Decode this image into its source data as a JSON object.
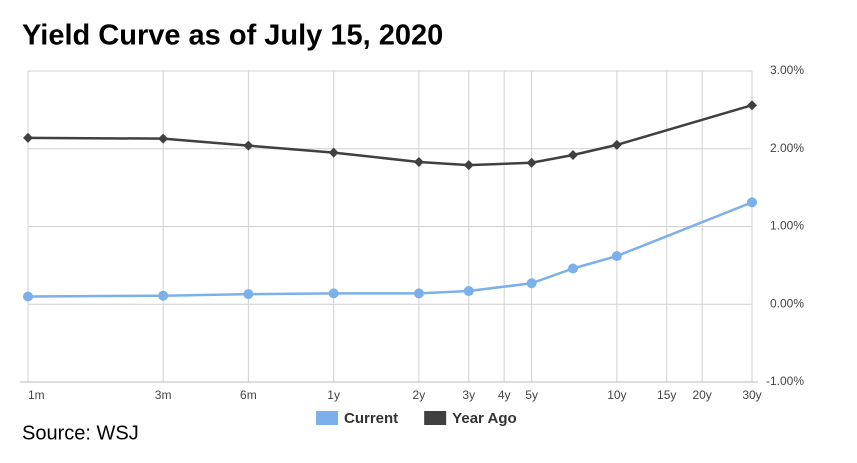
{
  "chart_data": {
    "type": "line",
    "title": "Yield Curve as of July 15, 2020",
    "source": "Source: WSJ",
    "xscale": "log",
    "xlim": [
      1,
      360
    ],
    "xticks": [
      {
        "value": 1,
        "label": "1m"
      },
      {
        "value": 3,
        "label": "3m"
      },
      {
        "value": 6,
        "label": "6m"
      },
      {
        "value": 12,
        "label": "1y"
      },
      {
        "value": 24,
        "label": "2y"
      },
      {
        "value": 36,
        "label": "3y"
      },
      {
        "value": 48,
        "label": "4y"
      },
      {
        "value": 60,
        "label": "5y"
      },
      {
        "value": 120,
        "label": "10y"
      },
      {
        "value": 180,
        "label": "15y"
      },
      {
        "value": 240,
        "label": "20y"
      },
      {
        "value": 360,
        "label": "30y"
      }
    ],
    "ylim": [
      -1,
      3
    ],
    "yticks": [
      {
        "value": -1,
        "label": "-1.00%"
      },
      {
        "value": 0,
        "label": "0.00%"
      },
      {
        "value": 1,
        "label": "1.00%"
      },
      {
        "value": 2,
        "label": "2.00%"
      },
      {
        "value": 3,
        "label": "3.00%"
      }
    ],
    "grid": true,
    "legend": "bottom",
    "x": [
      1,
      3,
      6,
      12,
      24,
      36,
      60,
      84,
      120,
      360
    ],
    "series": [
      {
        "name": "Current",
        "color": "#7cb0ea",
        "marker": "circle",
        "values": [
          0.1,
          0.11,
          0.13,
          0.14,
          0.14,
          0.17,
          0.27,
          0.46,
          0.62,
          1.31
        ]
      },
      {
        "name": "Year Ago",
        "color": "#404040",
        "marker": "diamond",
        "values": [
          2.14,
          2.13,
          2.04,
          1.95,
          1.83,
          1.79,
          1.82,
          1.92,
          2.05,
          2.56
        ]
      }
    ]
  }
}
